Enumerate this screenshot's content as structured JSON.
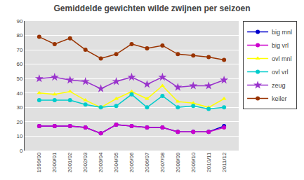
{
  "chart_data": {
    "type": "line",
    "title": "Gemiddelde gewichten wilde zwijnen per seizoen",
    "categories": [
      "1999/00",
      "2000/01",
      "2001/02",
      "2002/03",
      "2003/04",
      "2004/05",
      "2005/06",
      "2006/07",
      "2007/08",
      "2008/09",
      "2009/10",
      "2010/11",
      "2011/12"
    ],
    "series": [
      {
        "name": "big mnl",
        "color": "#0000CC",
        "marker": "circle",
        "values": [
          17,
          17,
          17,
          16,
          12,
          18,
          17,
          16,
          16,
          13,
          13,
          13,
          17
        ]
      },
      {
        "name": "big vrl",
        "color": "#CC00CC",
        "marker": "circle",
        "values": [
          17,
          17,
          17,
          16,
          12,
          18,
          17,
          16,
          16,
          13,
          13,
          13,
          16
        ]
      },
      {
        "name": "ovl mnl",
        "color": "#FFFF00",
        "marker": "triangle-up",
        "values": [
          40,
          39,
          41,
          35,
          30,
          36,
          41,
          36,
          45,
          34,
          33,
          30,
          36
        ]
      },
      {
        "name": "ovl vrl",
        "color": "#00CCCC",
        "marker": "circle",
        "values": [
          35,
          35,
          35,
          32,
          30,
          31,
          39,
          30,
          38,
          30,
          31,
          29,
          30
        ]
      },
      {
        "name": "zeug",
        "color": "#9933CC",
        "marker": "star",
        "values": [
          50,
          51,
          49,
          48,
          43,
          48,
          51,
          46,
          51,
          44,
          45,
          45,
          49
        ]
      },
      {
        "name": "keiler",
        "color": "#993300",
        "marker": "circle",
        "values": [
          79,
          74,
          78,
          70,
          64,
          67,
          74,
          71,
          73,
          67,
          66,
          65,
          63
        ]
      }
    ],
    "ylim": [
      0,
      90
    ],
    "yticks": [
      0,
      10,
      20,
      30,
      40,
      50,
      60,
      70,
      80,
      90
    ],
    "grid": true,
    "legend": "right"
  }
}
